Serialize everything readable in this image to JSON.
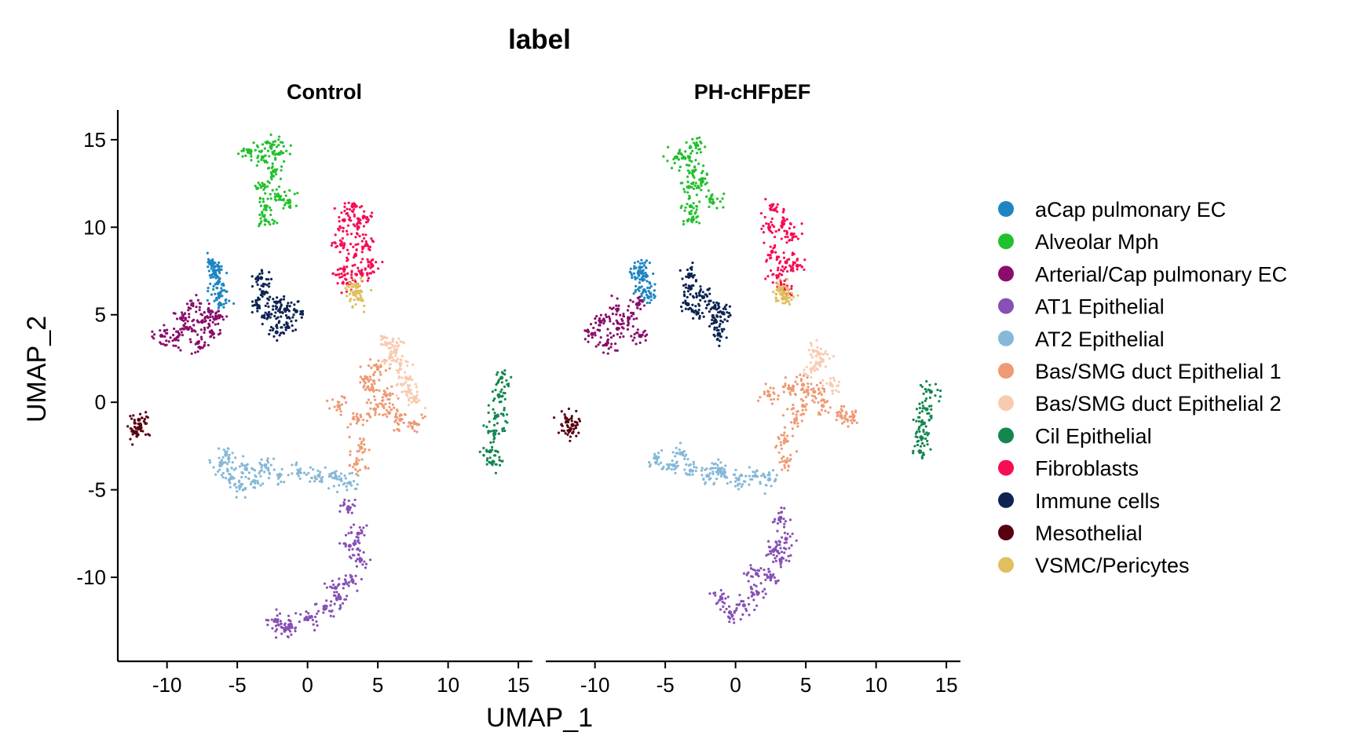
{
  "chart_data": {
    "type": "scatter",
    "title": "label",
    "xlabel": "UMAP_1",
    "ylabel": "UMAP_2",
    "xlim": [
      -13.5,
      16
    ],
    "ylim": [
      -14.8,
      16.7
    ],
    "x_ticks": [
      -10,
      -5,
      0,
      5,
      10,
      15
    ],
    "y_ticks": [
      15,
      10,
      5,
      0,
      -5,
      -10
    ],
    "x_tick_labels": [
      "-10",
      "-5",
      "0",
      "5",
      "10",
      "15"
    ],
    "y_tick_labels": [
      "15",
      "10",
      "5",
      "0",
      "-5",
      "-10"
    ],
    "grid": false,
    "legend_position": "right",
    "panels": [
      "Control",
      "PH-cHFpEF"
    ],
    "series": [
      {
        "name": "aCap pulmonary EC",
        "color": "#1f85c2",
        "clusters": [
          {
            "panel": "Control",
            "points": [
              [
                -6.8,
                8.0
              ],
              [
                -6.6,
                7.4
              ],
              [
                -6.4,
                6.8
              ],
              [
                -6.3,
                6.2
              ],
              [
                -6.2,
                5.6
              ],
              [
                -6.4,
                7.8
              ]
            ]
          },
          {
            "panel": "PH-cHFpEF",
            "points": [
              [
                -6.8,
                7.7
              ],
              [
                -6.6,
                7.0
              ],
              [
                -6.5,
                6.4
              ],
              [
                -6.9,
                7.4
              ],
              [
                -6.2,
                6.0
              ]
            ]
          }
        ]
      },
      {
        "name": "Alveolar Mph",
        "color": "#21c02c",
        "clusters": [
          {
            "panel": "Control",
            "points": [
              [
                -2.6,
                14.6
              ],
              [
                -2.0,
                14.2
              ],
              [
                -3.2,
                14.0
              ],
              [
                -2.4,
                13.2
              ],
              [
                -3.1,
                12.4
              ],
              [
                -3.0,
                11.2
              ],
              [
                -3.0,
                10.4
              ],
              [
                -2.1,
                11.8
              ],
              [
                -1.3,
                11.5
              ],
              [
                -4.2,
                14.3
              ]
            ]
          },
          {
            "panel": "PH-cHFpEF",
            "points": [
              [
                -3.3,
                14.0
              ],
              [
                -3.0,
                13.2
              ],
              [
                -3.3,
                12.3
              ],
              [
                -3.2,
                11.2
              ],
              [
                -3.1,
                10.4
              ],
              [
                -2.4,
                12.6
              ],
              [
                -1.6,
                11.4
              ],
              [
                -4.2,
                14.0
              ],
              [
                -2.8,
                14.7
              ]
            ]
          }
        ]
      },
      {
        "name": "Arterial/Cap pulmonary EC",
        "color": "#8a0d6b",
        "clusters": [
          {
            "panel": "Control",
            "points": [
              [
                -10.4,
                3.8
              ],
              [
                -9.4,
                3.6
              ],
              [
                -8.5,
                4.2
              ],
              [
                -7.5,
                4.6
              ],
              [
                -6.8,
                4.0
              ],
              [
                -8.2,
                5.6
              ],
              [
                -7.0,
                5.2
              ],
              [
                -9.0,
                4.8
              ],
              [
                -6.5,
                4.8
              ],
              [
                -7.8,
                3.4
              ]
            ]
          },
          {
            "panel": "PH-cHFpEF",
            "points": [
              [
                -10.2,
                3.9
              ],
              [
                -9.2,
                3.3
              ],
              [
                -8.4,
                4.2
              ],
              [
                -7.6,
                4.8
              ],
              [
                -7.0,
                5.6
              ],
              [
                -8.4,
                5.3
              ],
              [
                -9.6,
                4.6
              ],
              [
                -6.8,
                3.8
              ]
            ]
          }
        ]
      },
      {
        "name": "AT1 Epithelial",
        "color": "#8750b5",
        "clusters": [
          {
            "panel": "Control",
            "points": [
              [
                2.9,
                -6.0
              ],
              [
                3.6,
                -7.5
              ],
              [
                3.8,
                -9.0
              ],
              [
                3.2,
                -10.2
              ],
              [
                2.3,
                -11.2
              ],
              [
                1.2,
                -11.8
              ],
              [
                0.0,
                -12.4
              ],
              [
                -1.2,
                -12.7
              ],
              [
                -2.2,
                -12.5
              ],
              [
                -1.6,
                -13.0
              ],
              [
                3.0,
                -8.2
              ],
              [
                2.0,
                -10.6
              ]
            ]
          },
          {
            "panel": "PH-cHFpEF",
            "points": [
              [
                3.2,
                -6.6
              ],
              [
                3.6,
                -7.8
              ],
              [
                3.2,
                -9.0
              ],
              [
                2.5,
                -10.0
              ],
              [
                1.6,
                -10.9
              ],
              [
                0.6,
                -11.6
              ],
              [
                -0.4,
                -12.0
              ],
              [
                -1.0,
                -11.2
              ],
              [
                2.8,
                -8.4
              ],
              [
                1.5,
                -9.8
              ]
            ]
          }
        ]
      },
      {
        "name": "AT2 Epithelial",
        "color": "#86b8d8",
        "clusters": [
          {
            "panel": "Control",
            "points": [
              [
                -6.2,
                -3.6
              ],
              [
                -5.4,
                -4.3
              ],
              [
                -4.4,
                -3.8
              ],
              [
                -3.8,
                -4.5
              ],
              [
                -3.0,
                -3.6
              ],
              [
                -2.0,
                -4.2
              ],
              [
                -0.6,
                -4.0
              ],
              [
                0.8,
                -4.2
              ],
              [
                2.0,
                -4.3
              ],
              [
                3.0,
                -4.6
              ],
              [
                -5.8,
                -3.0
              ],
              [
                -4.8,
                -4.8
              ]
            ]
          },
          {
            "panel": "PH-cHFpEF",
            "points": [
              [
                -5.6,
                -3.2
              ],
              [
                -4.4,
                -3.6
              ],
              [
                -3.2,
                -3.9
              ],
              [
                -2.0,
                -4.2
              ],
              [
                -0.8,
                -4.0
              ],
              [
                0.2,
                -4.4
              ],
              [
                1.4,
                -4.2
              ],
              [
                2.4,
                -4.4
              ],
              [
                -3.8,
                -2.9
              ],
              [
                -1.2,
                -3.8
              ]
            ]
          }
        ]
      },
      {
        "name": "Bas/SMG duct Epithelial 1",
        "color": "#ee9a74",
        "clusters": [
          {
            "panel": "Control",
            "points": [
              [
                3.6,
                -1.0
              ],
              [
                4.8,
                -0.4
              ],
              [
                5.6,
                0.4
              ],
              [
                4.2,
                1.4
              ],
              [
                5.0,
                2.0
              ],
              [
                3.8,
                -2.6
              ],
              [
                6.6,
                -1.0
              ],
              [
                7.6,
                -1.2
              ],
              [
                2.2,
                -0.2
              ],
              [
                3.5,
                -3.5
              ],
              [
                4.6,
                0.8
              ],
              [
                5.8,
                -0.6
              ]
            ]
          },
          {
            "panel": "PH-cHFpEF",
            "points": [
              [
                3.8,
                0.8
              ],
              [
                4.8,
                1.0
              ],
              [
                4.3,
                -1.0
              ],
              [
                3.5,
                -2.2
              ],
              [
                6.2,
                -0.2
              ],
              [
                7.5,
                -0.8
              ],
              [
                8.4,
                -0.8
              ],
              [
                2.4,
                0.4
              ],
              [
                3.6,
                -3.4
              ],
              [
                4.8,
                -0.2
              ],
              [
                5.6,
                0.6
              ]
            ]
          }
        ]
      },
      {
        "name": "Bas/SMG duct Epithelial 2",
        "color": "#f8cbb0",
        "clusters": [
          {
            "panel": "Control",
            "points": [
              [
                5.6,
                3.3
              ],
              [
                6.3,
                3.0
              ],
              [
                6.6,
                2.2
              ],
              [
                7.0,
                1.4
              ],
              [
                7.2,
                0.6
              ],
              [
                5.9,
                2.6
              ],
              [
                7.6,
                0.2
              ]
            ]
          },
          {
            "panel": "PH-cHFpEF",
            "points": [
              [
                5.4,
                1.9
              ],
              [
                6.2,
                2.4
              ],
              [
                6.8,
                1.0
              ],
              [
                5.9,
                2.8
              ]
            ]
          }
        ]
      },
      {
        "name": "Cil Epithelial",
        "color": "#14874f",
        "clusters": [
          {
            "panel": "Control",
            "points": [
              [
                13.8,
                1.4
              ],
              [
                13.6,
                0.4
              ],
              [
                13.4,
                -0.8
              ],
              [
                13.3,
                -1.8
              ],
              [
                13.0,
                -2.8
              ],
              [
                13.2,
                -3.4
              ]
            ]
          },
          {
            "panel": "PH-cHFpEF",
            "points": [
              [
                13.9,
                0.6
              ],
              [
                13.6,
                -0.4
              ],
              [
                13.4,
                -1.2
              ],
              [
                13.2,
                -2.0
              ],
              [
                13.1,
                -2.8
              ]
            ]
          }
        ]
      },
      {
        "name": "Fibroblasts",
        "color": "#f70d52",
        "clusters": [
          {
            "panel": "Control",
            "points": [
              [
                3.2,
                11.2
              ],
              [
                2.6,
                10.4
              ],
              [
                3.6,
                10.0
              ],
              [
                2.4,
                9.0
              ],
              [
                3.4,
                8.4
              ],
              [
                4.2,
                9.0
              ],
              [
                2.6,
                7.6
              ],
              [
                3.8,
                7.4
              ],
              [
                4.6,
                7.8
              ],
              [
                3.0,
                6.8
              ],
              [
                4.0,
                10.6
              ]
            ]
          },
          {
            "panel": "PH-cHFpEF",
            "points": [
              [
                2.8,
                11.0
              ],
              [
                2.4,
                10.0
              ],
              [
                3.4,
                10.2
              ],
              [
                4.0,
                9.6
              ],
              [
                2.6,
                8.6
              ],
              [
                3.6,
                8.0
              ],
              [
                4.4,
                7.8
              ],
              [
                3.0,
                7.2
              ],
              [
                3.6,
                6.6
              ]
            ]
          }
        ]
      },
      {
        "name": "Immune cells",
        "color": "#0e2452",
        "clusters": [
          {
            "panel": "Control",
            "points": [
              [
                -3.3,
                7.1
              ],
              [
                -3.2,
                6.3
              ],
              [
                -3.5,
                5.5
              ],
              [
                -2.8,
                5.0
              ],
              [
                -2.2,
                5.7
              ],
              [
                -1.6,
                5.3
              ],
              [
                -1.4,
                4.3
              ],
              [
                -2.2,
                4.0
              ],
              [
                -0.8,
                5.2
              ]
            ]
          },
          {
            "panel": "PH-cHFpEF",
            "points": [
              [
                -3.3,
                7.3
              ],
              [
                -3.2,
                6.5
              ],
              [
                -3.4,
                5.6
              ],
              [
                -2.7,
                5.1
              ],
              [
                -2.3,
                6.0
              ],
              [
                -1.5,
                5.4
              ],
              [
                -1.4,
                4.6
              ],
              [
                -1.2,
                3.9
              ],
              [
                -0.9,
                5.1
              ]
            ]
          }
        ]
      },
      {
        "name": "Mesothelial",
        "color": "#580010",
        "clusters": [
          {
            "panel": "Control",
            "points": [
              [
                -12.0,
                -1.0
              ],
              [
                -12.2,
                -1.7
              ],
              [
                -11.9,
                -1.4
              ]
            ]
          },
          {
            "panel": "PH-cHFpEF",
            "points": [
              [
                -12.0,
                -1.1
              ],
              [
                -11.6,
                -1.3
              ],
              [
                -11.8,
                -1.6
              ]
            ]
          }
        ]
      },
      {
        "name": "VSMC/Pericytes",
        "color": "#e0bf5e",
        "clusters": [
          {
            "panel": "Control",
            "points": [
              [
                3.4,
                6.3
              ],
              [
                3.6,
                5.9
              ],
              [
                3.5,
                6.6
              ]
            ]
          },
          {
            "panel": "PH-cHFpEF",
            "points": [
              [
                3.4,
                6.2
              ],
              [
                3.6,
                5.9
              ],
              [
                3.3,
                6.5
              ]
            ]
          }
        ]
      }
    ]
  }
}
